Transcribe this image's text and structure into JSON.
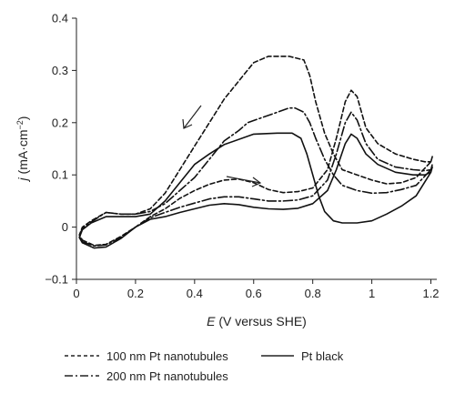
{
  "chart_data": {
    "type": "line",
    "xlabel_var": "E",
    "xlabel_rest": " (V versus SHE)",
    "ylabel_var": "j",
    "ylabel_rest": " (mA·cm",
    "ylabel_sup": "−2",
    "ylabel_close": ")",
    "xlim": [
      0,
      1.22
    ],
    "ylim": [
      -0.1,
      0.4
    ],
    "x_ticks": [
      0,
      0.2,
      0.4,
      0.6,
      0.8,
      1,
      1.2
    ],
    "x_tick_labels": [
      "0",
      "0.2",
      "0.4",
      "0.6",
      "0.8",
      "1",
      "1.2"
    ],
    "y_ticks": [
      -0.1,
      0,
      0.1,
      0.2,
      0.3,
      0.4
    ],
    "y_tick_labels": [
      "−0.1",
      "0",
      "0.1",
      "0.2",
      "0.3",
      "0.4"
    ],
    "grid": false,
    "legend_position": "bottom",
    "series": [
      {
        "name": "100 nm Pt nanotubules",
        "dash": "dashed",
        "points": [
          [
            0.02,
            -0.025
          ],
          [
            0.06,
            -0.035
          ],
          [
            0.1,
            -0.033
          ],
          [
            0.15,
            -0.018
          ],
          [
            0.2,
            0
          ],
          [
            0.25,
            0.02
          ],
          [
            0.3,
            0.035
          ],
          [
            0.35,
            0.055
          ],
          [
            0.4,
            0.07
          ],
          [
            0.45,
            0.082
          ],
          [
            0.5,
            0.09
          ],
          [
            0.55,
            0.092
          ],
          [
            0.6,
            0.085
          ],
          [
            0.65,
            0.072
          ],
          [
            0.7,
            0.066
          ],
          [
            0.75,
            0.068
          ],
          [
            0.8,
            0.075
          ],
          [
            0.85,
            0.11
          ],
          [
            0.88,
            0.17
          ],
          [
            0.91,
            0.24
          ],
          [
            0.93,
            0.262
          ],
          [
            0.95,
            0.25
          ],
          [
            0.98,
            0.19
          ],
          [
            1.02,
            0.16
          ],
          [
            1.08,
            0.14
          ],
          [
            1.14,
            0.13
          ],
          [
            1.18,
            0.125
          ],
          [
            1.2,
            0.125
          ],
          [
            1.205,
            0.135
          ],
          [
            1.2,
            0.125
          ],
          [
            1.15,
            0.095
          ],
          [
            1.1,
            0.085
          ],
          [
            1.05,
            0.083
          ],
          [
            1.0,
            0.09
          ],
          [
            0.95,
            0.1
          ],
          [
            0.9,
            0.11
          ],
          [
            0.87,
            0.14
          ],
          [
            0.84,
            0.18
          ],
          [
            0.81,
            0.24
          ],
          [
            0.79,
            0.29
          ],
          [
            0.77,
            0.32
          ],
          [
            0.72,
            0.327
          ],
          [
            0.65,
            0.327
          ],
          [
            0.6,
            0.315
          ],
          [
            0.55,
            0.28
          ],
          [
            0.5,
            0.245
          ],
          [
            0.45,
            0.2
          ],
          [
            0.4,
            0.155
          ],
          [
            0.35,
            0.11
          ],
          [
            0.3,
            0.065
          ],
          [
            0.25,
            0.035
          ],
          [
            0.2,
            0.025
          ],
          [
            0.15,
            0.025
          ],
          [
            0.1,
            0.028
          ],
          [
            0.05,
            0.012
          ],
          [
            0.02,
            0.0
          ],
          [
            0.01,
            -0.015
          ],
          [
            0.02,
            -0.025
          ]
        ]
      },
      {
        "name": "200 nm Pt nanotubules",
        "dash": "dashdot",
        "points": [
          [
            0.02,
            -0.028
          ],
          [
            0.06,
            -0.036
          ],
          [
            0.1,
            -0.034
          ],
          [
            0.15,
            -0.02
          ],
          [
            0.2,
            0
          ],
          [
            0.25,
            0.018
          ],
          [
            0.3,
            0.028
          ],
          [
            0.35,
            0.038
          ],
          [
            0.4,
            0.046
          ],
          [
            0.45,
            0.054
          ],
          [
            0.5,
            0.058
          ],
          [
            0.55,
            0.058
          ],
          [
            0.6,
            0.054
          ],
          [
            0.65,
            0.05
          ],
          [
            0.7,
            0.05
          ],
          [
            0.75,
            0.052
          ],
          [
            0.8,
            0.06
          ],
          [
            0.85,
            0.09
          ],
          [
            0.88,
            0.14
          ],
          [
            0.91,
            0.2
          ],
          [
            0.93,
            0.22
          ],
          [
            0.95,
            0.205
          ],
          [
            0.98,
            0.16
          ],
          [
            1.02,
            0.13
          ],
          [
            1.08,
            0.115
          ],
          [
            1.14,
            0.11
          ],
          [
            1.18,
            0.108
          ],
          [
            1.2,
            0.11
          ],
          [
            1.205,
            0.12
          ],
          [
            1.2,
            0.11
          ],
          [
            1.15,
            0.08
          ],
          [
            1.1,
            0.072
          ],
          [
            1.05,
            0.066
          ],
          [
            1.0,
            0.065
          ],
          [
            0.95,
            0.07
          ],
          [
            0.9,
            0.08
          ],
          [
            0.87,
            0.1
          ],
          [
            0.84,
            0.13
          ],
          [
            0.81,
            0.17
          ],
          [
            0.79,
            0.2
          ],
          [
            0.77,
            0.22
          ],
          [
            0.74,
            0.228
          ],
          [
            0.72,
            0.228
          ],
          [
            0.67,
            0.218
          ],
          [
            0.62,
            0.208
          ],
          [
            0.58,
            0.2
          ],
          [
            0.55,
            0.185
          ],
          [
            0.5,
            0.165
          ],
          [
            0.45,
            0.13
          ],
          [
            0.4,
            0.095
          ],
          [
            0.35,
            0.07
          ],
          [
            0.3,
            0.045
          ],
          [
            0.25,
            0.03
          ],
          [
            0.2,
            0.025
          ],
          [
            0.15,
            0.025
          ],
          [
            0.1,
            0.028
          ],
          [
            0.05,
            0.01
          ],
          [
            0.02,
            -0.002
          ],
          [
            0.01,
            -0.018
          ],
          [
            0.02,
            -0.028
          ]
        ]
      },
      {
        "name": "Pt black",
        "dash": "solid",
        "points": [
          [
            0.02,
            -0.03
          ],
          [
            0.06,
            -0.04
          ],
          [
            0.1,
            -0.038
          ],
          [
            0.15,
            -0.022
          ],
          [
            0.2,
            0
          ],
          [
            0.25,
            0.015
          ],
          [
            0.3,
            0.02
          ],
          [
            0.35,
            0.028
          ],
          [
            0.4,
            0.035
          ],
          [
            0.45,
            0.042
          ],
          [
            0.5,
            0.045
          ],
          [
            0.55,
            0.043
          ],
          [
            0.6,
            0.038
          ],
          [
            0.65,
            0.035
          ],
          [
            0.7,
            0.034
          ],
          [
            0.75,
            0.036
          ],
          [
            0.8,
            0.045
          ],
          [
            0.85,
            0.07
          ],
          [
            0.88,
            0.11
          ],
          [
            0.91,
            0.16
          ],
          [
            0.93,
            0.178
          ],
          [
            0.95,
            0.17
          ],
          [
            0.98,
            0.14
          ],
          [
            1.02,
            0.12
          ],
          [
            1.08,
            0.105
          ],
          [
            1.14,
            0.1
          ],
          [
            1.18,
            0.1
          ],
          [
            1.2,
            0.105
          ],
          [
            1.205,
            0.115
          ],
          [
            1.2,
            0.105
          ],
          [
            1.15,
            0.06
          ],
          [
            1.1,
            0.04
          ],
          [
            1.05,
            0.025
          ],
          [
            1.0,
            0.012
          ],
          [
            0.95,
            0.008
          ],
          [
            0.9,
            0.008
          ],
          [
            0.87,
            0.012
          ],
          [
            0.84,
            0.03
          ],
          [
            0.82,
            0.06
          ],
          [
            0.8,
            0.1
          ],
          [
            0.78,
            0.14
          ],
          [
            0.76,
            0.17
          ],
          [
            0.73,
            0.18
          ],
          [
            0.68,
            0.18
          ],
          [
            0.6,
            0.178
          ],
          [
            0.5,
            0.158
          ],
          [
            0.45,
            0.14
          ],
          [
            0.4,
            0.12
          ],
          [
            0.35,
            0.085
          ],
          [
            0.3,
            0.05
          ],
          [
            0.25,
            0.025
          ],
          [
            0.2,
            0.02
          ],
          [
            0.15,
            0.02
          ],
          [
            0.1,
            0.02
          ],
          [
            0.05,
            0.008
          ],
          [
            0.02,
            -0.005
          ],
          [
            0.01,
            -0.02
          ],
          [
            0.02,
            -0.03
          ]
        ]
      }
    ]
  }
}
